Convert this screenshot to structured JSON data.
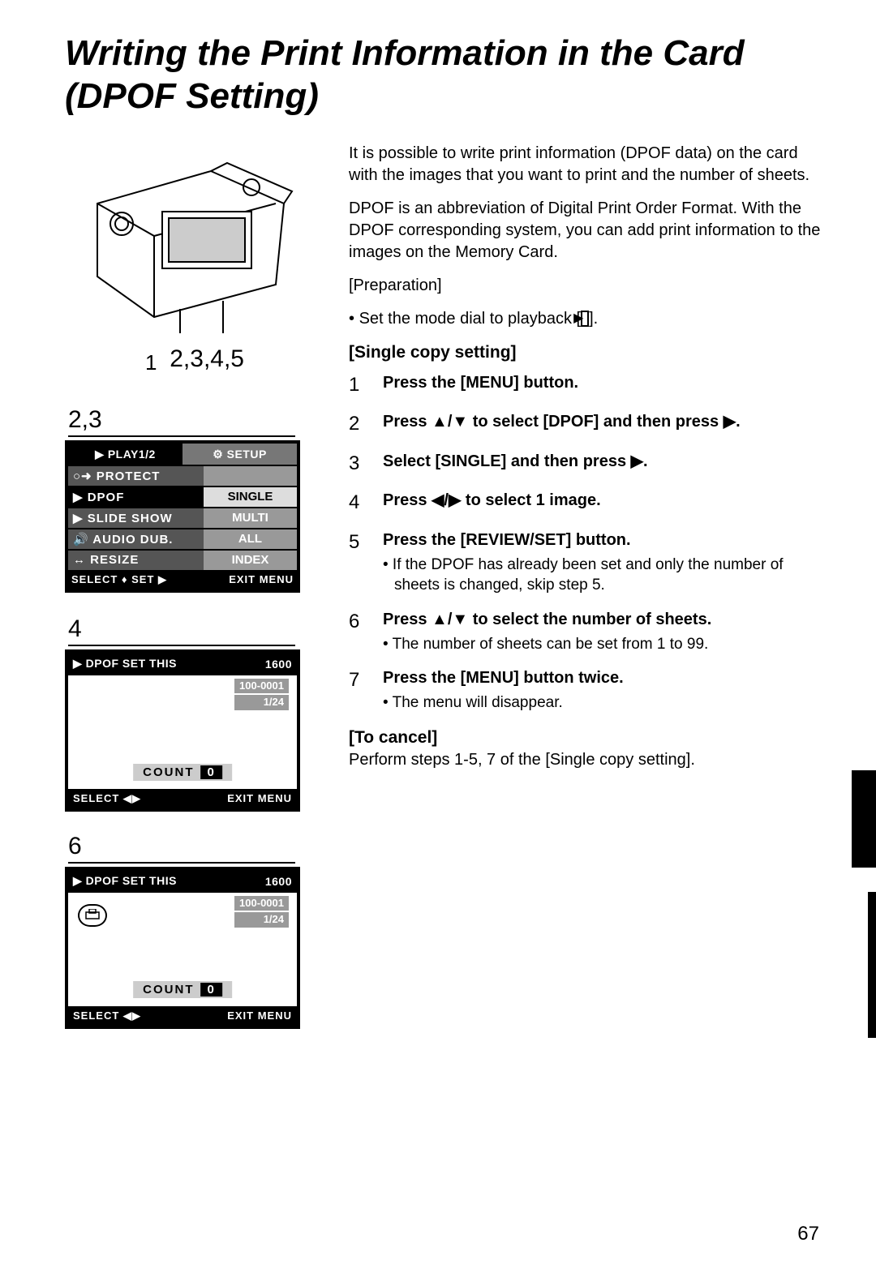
{
  "title_line1": "Writing the Print Information in the Card",
  "title_line2": "(DPOF Setting)",
  "camera_label_1": "1",
  "camera_label_rest": "2,3,4,5",
  "section23_label": "2,3",
  "section4_label": "4",
  "section6_label": "6",
  "menu23": {
    "tab1": "▶ PLAY1/2",
    "tab2": "⚙ SETUP",
    "rows": [
      {
        "label": "○➜ PROTECT",
        "opt": ""
      },
      {
        "label": "▶ DPOF",
        "opt": "SINGLE",
        "selected": true
      },
      {
        "label": "▶ SLIDE SHOW",
        "opt": "MULTI"
      },
      {
        "label": "🔊 AUDIO DUB.",
        "opt": "ALL"
      },
      {
        "label": "↔ RESIZE",
        "opt": "INDEX"
      }
    ],
    "footer_left": "SELECT ♦ SET ▶",
    "footer_right": "EXIT MENU"
  },
  "dpof4": {
    "title": "▶ DPOF SET THIS",
    "res": "1600",
    "folder": "100-0001",
    "frame": "1/24",
    "count_label": "COUNT",
    "count_val": "0",
    "footer_left": "SELECT ◀▶",
    "footer_right": "EXIT MENU"
  },
  "dpof6": {
    "title": "▶ DPOF SET THIS",
    "res": "1600",
    "folder": "100-0001",
    "frame": "1/24",
    "count_label": "COUNT",
    "count_val": "0",
    "footer_left": "SELECT ◀▶",
    "footer_right": "EXIT MENU",
    "show_print_icon": true
  },
  "intro1": "It is possible to write print information (DPOF data) on the card with the images that you want to print and the number of sheets.",
  "intro2": "DPOF is an abbreviation of Digital Print Order Format. With the DPOF corresponding system, you can add print information to the images on the Memory Card.",
  "prep_head": "[Preparation]",
  "prep_item": "Set the mode dial to playback [",
  "prep_item_end": "].",
  "single_head": "[Single copy setting]",
  "steps": [
    {
      "n": "1",
      "b": "Press the [MENU] button."
    },
    {
      "n": "2",
      "b": "Press ▲/▼ to select [DPOF] and then press ▶."
    },
    {
      "n": "3",
      "b": "Select [SINGLE] and then press ▶."
    },
    {
      "n": "4",
      "b": "Press ◀/▶ to select 1 image."
    },
    {
      "n": "5",
      "b": "Press the [REVIEW/SET] button.",
      "sub": "• If the DPOF has already been set and only the number of sheets is changed, skip step 5."
    },
    {
      "n": "6",
      "b": "Press ▲/▼ to select the number of sheets.",
      "sub": "• The number of sheets can be set from 1 to 99."
    },
    {
      "n": "7",
      "b": "Press the [MENU] button twice.",
      "sub": "• The menu will disappear."
    }
  ],
  "cancel_head": "[To cancel]",
  "cancel_body": "Perform steps 1-5, 7 of the [Single copy setting].",
  "page_number": "67"
}
